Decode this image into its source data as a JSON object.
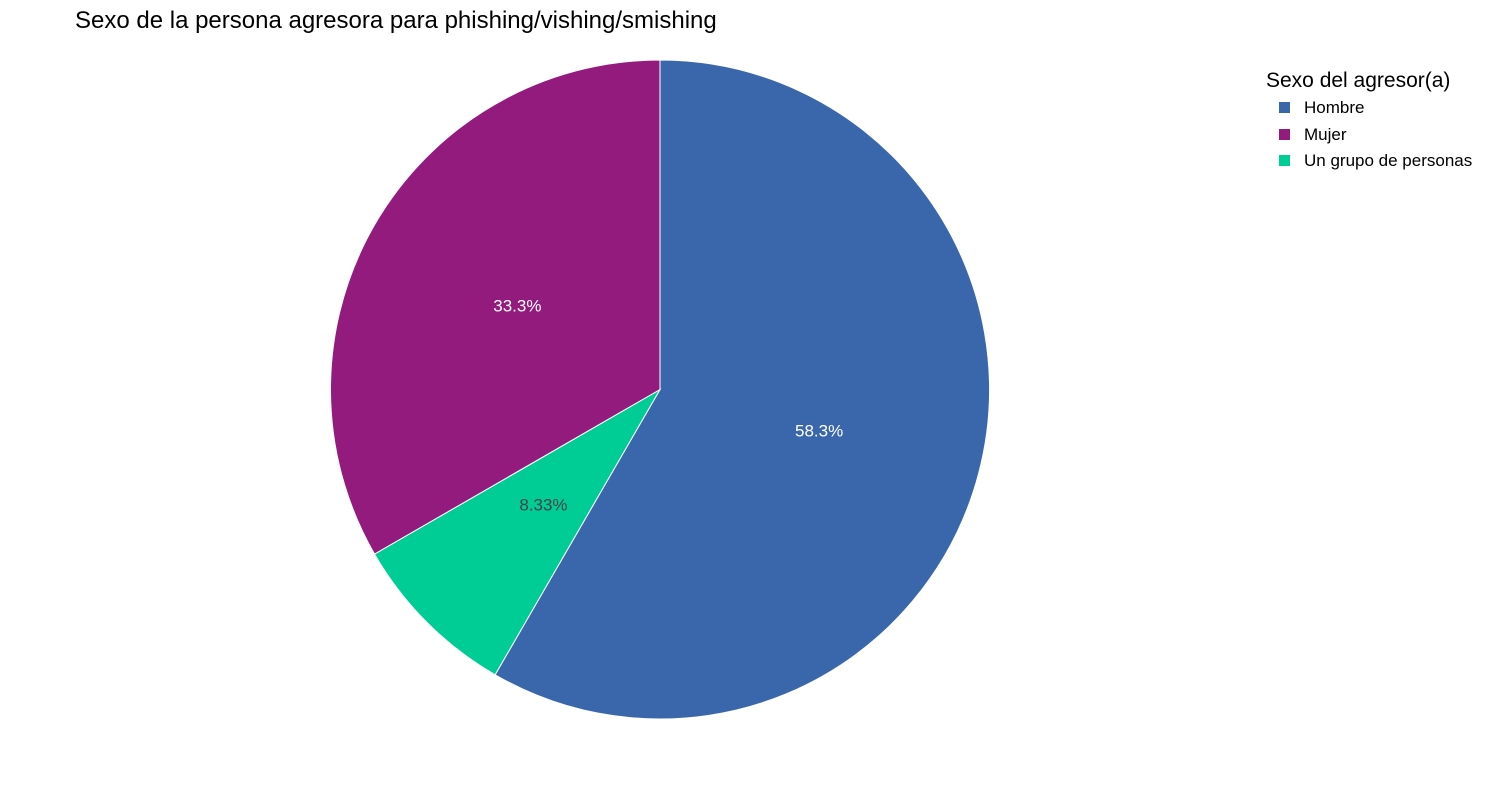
{
  "chart_data": {
    "type": "pie",
    "title": "Sexo de la persona agresora para phishing/vishing/smishing",
    "legend_title": "Sexo del agresor(a)",
    "legend_position": "top-right",
    "categories": [
      "Hombre",
      "Mujer",
      "Un grupo de personas"
    ],
    "values": [
      58.3,
      33.3,
      8.33
    ],
    "labels": [
      "58.3%",
      "33.3%",
      "8.33%"
    ],
    "colors": [
      "#3a67ab",
      "#941b7e",
      "#00cc96"
    ],
    "label_colors": [
      "#ffffff",
      "#ffffff",
      "#444444"
    ],
    "slice_order": [
      0,
      2,
      1
    ],
    "start_angle_deg": 0,
    "direction": "clockwise"
  }
}
